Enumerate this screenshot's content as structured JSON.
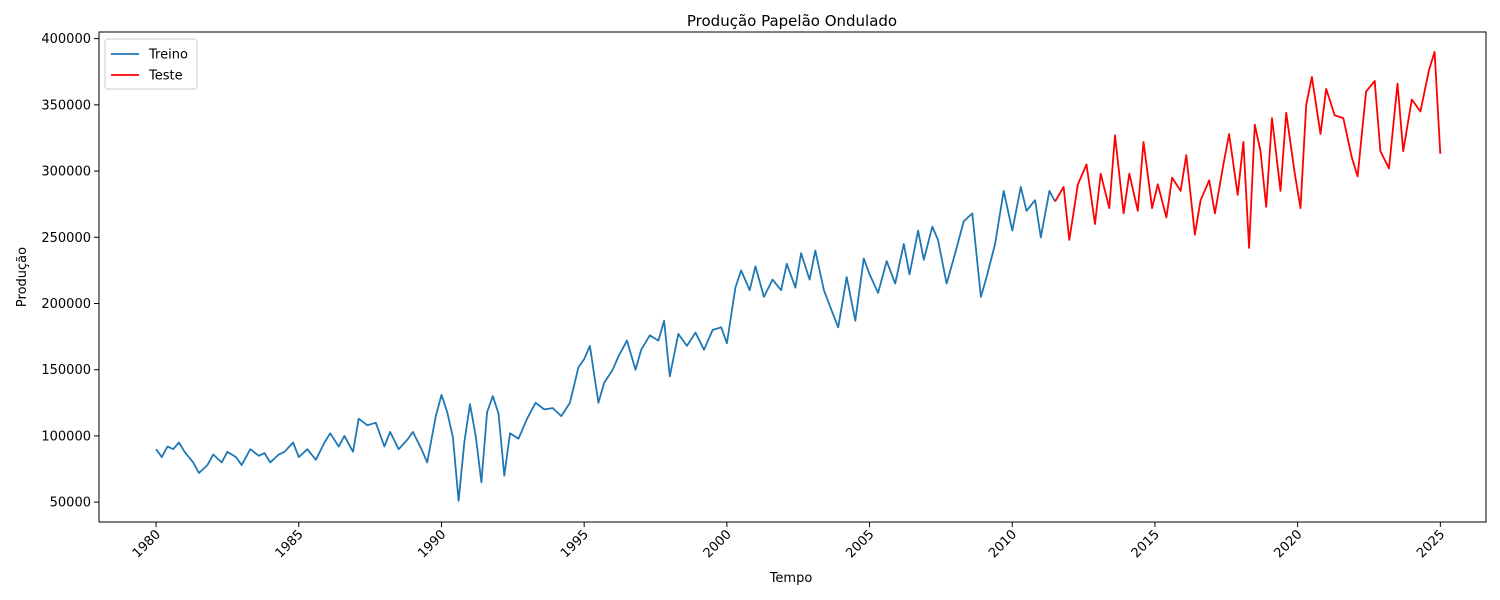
{
  "chart_data": {
    "type": "line",
    "title": "Produção Papelão Ondulado",
    "xlabel": "Tempo",
    "ylabel": "Produção",
    "xlim": [
      1978.0,
      2026.6
    ],
    "ylim": [
      35000,
      405000
    ],
    "x_ticks": [
      1980,
      1985,
      1990,
      1995,
      2000,
      2005,
      2010,
      2015,
      2020,
      2025
    ],
    "x_tick_labels": [
      "1980",
      "1985",
      "1990",
      "1995",
      "2000",
      "2005",
      "2010",
      "2015",
      "2020",
      "2025"
    ],
    "y_ticks": [
      50000,
      100000,
      150000,
      200000,
      250000,
      300000,
      350000,
      400000
    ],
    "y_tick_labels": [
      "50000",
      "100000",
      "150000",
      "200000",
      "250000",
      "300000",
      "350000",
      "400000"
    ],
    "grid": false,
    "legend": {
      "placement": "top-left"
    },
    "series": [
      {
        "name": "Treino",
        "color": "#1f77b4",
        "x": [
          1980.0,
          1980.2,
          1980.4,
          1980.6,
          1980.8,
          1981.0,
          1981.3,
          1981.5,
          1981.8,
          1982.0,
          1982.3,
          1982.5,
          1982.8,
          1983.0,
          1983.3,
          1983.6,
          1983.8,
          1984.0,
          1984.3,
          1984.5,
          1984.8,
          1985.0,
          1985.3,
          1985.6,
          1985.9,
          1986.1,
          1986.4,
          1986.6,
          1986.9,
          1987.1,
          1987.4,
          1987.7,
          1988.0,
          1988.2,
          1988.5,
          1988.8,
          1989.0,
          1989.3,
          1989.5,
          1989.8,
          1990.0,
          1990.2,
          1990.4,
          1990.6,
          1990.8,
          1991.0,
          1991.2,
          1991.4,
          1991.6,
          1991.8,
          1992.0,
          1992.2,
          1992.4,
          1992.7,
          1993.0,
          1993.3,
          1993.6,
          1993.9,
          1994.2,
          1994.5,
          1994.8,
          1995.0,
          1995.2,
          1995.5,
          1995.7,
          1996.0,
          1996.2,
          1996.5,
          1996.8,
          1997.0,
          1997.3,
          1997.6,
          1997.8,
          1998.0,
          1998.3,
          1998.6,
          1998.9,
          1999.2,
          1999.5,
          1999.8,
          2000.0,
          2000.3,
          2000.5,
          2000.8,
          2001.0,
          2001.3,
          2001.6,
          2001.9,
          2002.1,
          2002.4,
          2002.6,
          2002.9,
          2003.1,
          2003.4,
          2003.7,
          2003.9,
          2004.2,
          2004.5,
          2004.8,
          2005.0,
          2005.3,
          2005.6,
          2005.9,
          2006.2,
          2006.4,
          2006.7,
          2006.9,
          2007.2,
          2007.4,
          2007.7,
          2008.0,
          2008.3,
          2008.6,
          2008.9,
          2009.1,
          2009.4,
          2009.7,
          2010.0,
          2010.3,
          2010.5,
          2010.8,
          2011.0,
          2011.3,
          2011.5
        ],
        "values": [
          90000,
          84000,
          92000,
          90000,
          95000,
          88000,
          80000,
          72000,
          78000,
          86000,
          80000,
          88000,
          84000,
          78000,
          90000,
          85000,
          87000,
          80000,
          86000,
          88000,
          95000,
          84000,
          90000,
          82000,
          95000,
          102000,
          92000,
          100000,
          88000,
          113000,
          108000,
          110000,
          92000,
          103000,
          90000,
          97000,
          103000,
          90000,
          80000,
          115000,
          131000,
          118000,
          99000,
          51000,
          95000,
          124000,
          100000,
          65000,
          118000,
          130000,
          117000,
          70000,
          102000,
          98000,
          113000,
          125000,
          120000,
          121000,
          115000,
          125000,
          152000,
          158000,
          168000,
          125000,
          140000,
          150000,
          160000,
          172000,
          150000,
          165000,
          176000,
          172000,
          187000,
          145000,
          177000,
          168000,
          178000,
          165000,
          180000,
          182000,
          170000,
          212000,
          225000,
          210000,
          228000,
          205000,
          218000,
          210000,
          230000,
          212000,
          238000,
          218000,
          240000,
          210000,
          193000,
          182000,
          220000,
          187000,
          234000,
          222000,
          208000,
          232000,
          215000,
          245000,
          222000,
          255000,
          233000,
          258000,
          248000,
          215000,
          238000,
          262000,
          268000,
          205000,
          220000,
          245000,
          285000,
          255000,
          288000,
          270000,
          278000,
          250000,
          285000,
          277000
        ]
      },
      {
        "name": "Teste",
        "color": "#ff0000",
        "x": [
          2011.5,
          2011.8,
          2012.0,
          2012.3,
          2012.6,
          2012.9,
          2013.1,
          2013.4,
          2013.6,
          2013.9,
          2014.1,
          2014.4,
          2014.6,
          2014.9,
          2015.1,
          2015.4,
          2015.6,
          2015.9,
          2016.1,
          2016.4,
          2016.6,
          2016.9,
          2017.1,
          2017.4,
          2017.6,
          2017.9,
          2018.1,
          2018.3,
          2018.5,
          2018.7,
          2018.9,
          2019.1,
          2019.4,
          2019.6,
          2019.9,
          2020.1,
          2020.3,
          2020.5,
          2020.8,
          2021.0,
          2021.3,
          2021.6,
          2021.9,
          2022.1,
          2022.4,
          2022.7,
          2022.9,
          2023.2,
          2023.5,
          2023.7,
          2024.0,
          2024.3,
          2024.6,
          2024.8,
          2025.0
        ],
        "values": [
          277000,
          288000,
          248000,
          290000,
          305000,
          260000,
          298000,
          272000,
          327000,
          268000,
          298000,
          270000,
          322000,
          272000,
          290000,
          265000,
          295000,
          285000,
          312000,
          252000,
          278000,
          293000,
          268000,
          305000,
          328000,
          282000,
          322000,
          242000,
          335000,
          315000,
          273000,
          340000,
          285000,
          344000,
          298000,
          272000,
          350000,
          371000,
          328000,
          362000,
          342000,
          340000,
          310000,
          296000,
          360000,
          368000,
          315000,
          302000,
          366000,
          315000,
          354000,
          345000,
          376000,
          390000,
          313000
        ]
      }
    ]
  }
}
